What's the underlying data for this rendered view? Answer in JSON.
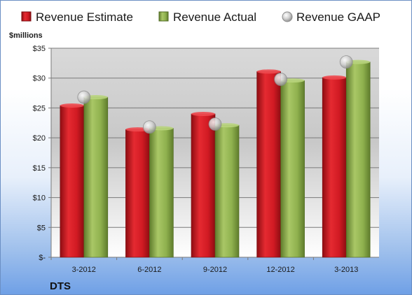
{
  "chart_data": {
    "type": "bar",
    "title": "",
    "company": "DTS",
    "unit_label": "$millions",
    "categories": [
      "3-2012",
      "6-2012",
      "9-2012",
      "12-2012",
      "3-2013"
    ],
    "series": [
      {
        "name": "Revenue Estimate",
        "kind": "bar",
        "color": "#d11a23",
        "values": [
          25.4,
          21.4,
          24.0,
          31.1,
          30.1
        ]
      },
      {
        "name": "Revenue Actual",
        "kind": "bar",
        "color": "#8fb14e",
        "values": [
          26.8,
          21.6,
          22.1,
          29.6,
          32.7
        ]
      },
      {
        "name": "Revenue GAAP",
        "kind": "marker",
        "color": "#c0c0c0",
        "values": [
          26.8,
          21.8,
          22.3,
          29.8,
          32.7
        ]
      }
    ],
    "ylim": [
      0,
      35
    ],
    "yticks": [
      0,
      5,
      10,
      15,
      20,
      25,
      30,
      35
    ],
    "ytick_labels": [
      "$-",
      "$5",
      "$10",
      "$15",
      "$20",
      "$25",
      "$30",
      "$35"
    ],
    "grid": true,
    "legend_position": "top"
  }
}
